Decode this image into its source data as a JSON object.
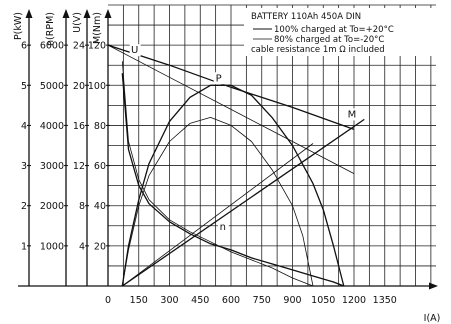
{
  "legend": {
    "title": "BATTERY 110Ah 450A DIN",
    "lines": [
      "100% charged at To=+20°C",
      "80% charged at To=-20°C",
      "cable resistance 1m Ω included"
    ]
  },
  "chart_data": {
    "type": "line",
    "xlabel": "I(A)",
    "xlim": [
      0,
      1600
    ],
    "x_ticks": [
      0,
      150,
      300,
      450,
      600,
      750,
      900,
      1050,
      1200,
      1350
    ],
    "axes": [
      {
        "label": "P(kW)",
        "ticks": [
          1,
          2,
          3,
          4,
          5,
          6
        ]
      },
      {
        "label": "n(RPM)",
        "ticks": [
          1000,
          2000,
          3000,
          4000,
          5000,
          6000
        ]
      },
      {
        "label": "U(V)",
        "ticks": [
          4,
          8,
          12,
          16,
          20,
          24
        ]
      },
      {
        "label": "M(Nm)",
        "ticks": [
          20,
          40,
          60,
          80,
          100,
          120
        ]
      }
    ],
    "ylim_M": [
      0,
      140
    ],
    "grid": true,
    "legend_position": "top-right",
    "curve_labels": [
      {
        "text": "U",
        "x": 130,
        "y": 116
      },
      {
        "text": "P",
        "x": 540,
        "y": 102
      },
      {
        "text": "M",
        "x": 1190,
        "y": 84
      },
      {
        "text": "n",
        "x": 560,
        "y": 28
      }
    ],
    "series": [
      {
        "name": "U",
        "condition": "100%",
        "x": [
          0,
          300,
          600,
          900,
          1200
        ],
        "y": [
          120,
          110,
          99,
          89,
          78
        ]
      },
      {
        "name": "U",
        "condition": "80%",
        "x": [
          0,
          300,
          600,
          900,
          1200
        ],
        "y": [
          120,
          104,
          88,
          72,
          56
        ]
      },
      {
        "name": "P",
        "condition": "100%",
        "x": [
          70,
          100,
          150,
          200,
          300,
          400,
          500,
          600,
          700,
          800,
          900,
          1000,
          1050,
          1100,
          1150
        ],
        "y": [
          0,
          20,
          43,
          61,
          82,
          94,
          100,
          100,
          95,
          84,
          70,
          51,
          38,
          20,
          0
        ]
      },
      {
        "name": "P",
        "condition": "80%",
        "x": [
          70,
          100,
          150,
          200,
          300,
          400,
          500,
          600,
          700,
          800,
          900,
          950,
          1000
        ],
        "y": [
          0,
          18,
          40,
          55,
          72,
          81,
          84,
          80,
          72,
          58,
          40,
          25,
          0
        ]
      },
      {
        "name": "M",
        "condition": "100%",
        "x": [
          70,
          1250
        ],
        "y": [
          0,
          83
        ]
      },
      {
        "name": "M",
        "condition": "80%",
        "x": [
          70,
          1000
        ],
        "y": [
          0,
          71
        ]
      },
      {
        "name": "n",
        "condition": "100%",
        "x": [
          70,
          100,
          150,
          200,
          300,
          400,
          500,
          600,
          700,
          800,
          900,
          1000,
          1100,
          1150
        ],
        "y": [
          106,
          68,
          50,
          41,
          32,
          26,
          21,
          18,
          14,
          11,
          8,
          5,
          2,
          0
        ]
      },
      {
        "name": "n",
        "condition": "80%",
        "x": [
          70,
          100,
          150,
          200,
          300,
          400,
          500,
          600,
          700,
          800,
          900,
          1000
        ],
        "y": [
          112,
          72,
          53,
          43,
          33,
          27,
          22,
          17,
          13,
          9,
          4,
          0
        ]
      }
    ]
  }
}
